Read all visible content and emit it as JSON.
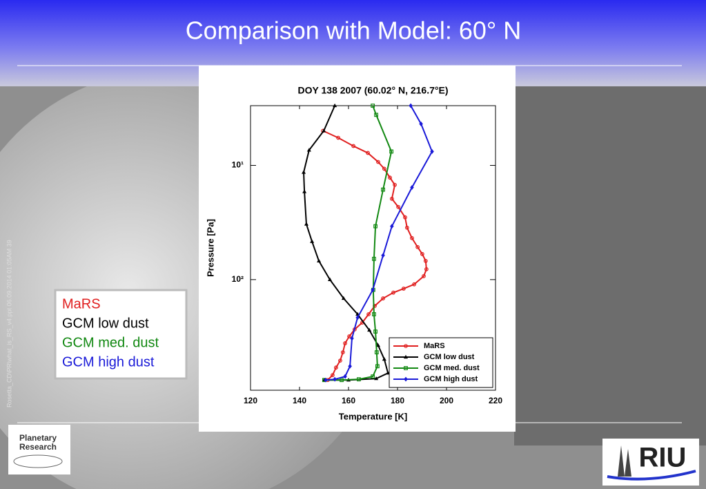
{
  "slide_title": "Comparison with Model: 60° N",
  "footer_note": "Rosetta_CD\\PR\\what_is_RS_v4.ppt 06.09.2014 01:05AM 39",
  "logo_left": [
    "Planetary",
    "Research"
  ],
  "logo_right": "RIU",
  "chart_data": {
    "type": "line",
    "title": "DOY 138 2007 (60.02° N, 216.7°E)",
    "xlabel": "Temperature [K]",
    "ylabel": "Pressure [Pa]",
    "xlim": [
      120,
      220
    ],
    "xticks": [
      120,
      140,
      160,
      180,
      200,
      220
    ],
    "ylim": [
      3,
      930
    ],
    "yticks": [
      {
        "value": 10,
        "label": "10¹"
      },
      {
        "value": 100,
        "label": "10²"
      }
    ],
    "ylog": true,
    "yinvert": true,
    "legend": "lower right",
    "series": [
      {
        "name": "MaRS",
        "color": "#e01e1e",
        "marker": "circle",
        "x": [
          149.6,
          155.8,
          162.0,
          167.9,
          172.1,
          174.6,
          176.9,
          178.9,
          177.7,
          180.3,
          183.1,
          183.9,
          185.9,
          188.2,
          190.1,
          191.5,
          191.8,
          190.7,
          186.8,
          182.5,
          178.3,
          174.1,
          170.7,
          168.2,
          165.6,
          162.5,
          160.3,
          158.6,
          157.7,
          156.6,
          154.9,
          153.5,
          151.5
        ],
        "values": [
          4.98,
          5.73,
          6.77,
          7.78,
          9.33,
          10.7,
          12.8,
          14.8,
          19.6,
          23.1,
          28.5,
          35.1,
          43.3,
          51.9,
          59.7,
          68.6,
          81.1,
          93.3,
          110,
          120,
          130,
          146,
          170,
          201,
          238,
          273,
          314,
          361,
          433,
          512,
          589,
          686,
          757
        ]
      },
      {
        "name": "GCM low dust",
        "color": "#000000",
        "marker": "triangle",
        "x": [
          154.4,
          149.9,
          143.9,
          141.7,
          142.0,
          142.8,
          145.1,
          147.9,
          152.4,
          158.0,
          163.7,
          168.5,
          172.1,
          174.6,
          176.1,
          171.3,
          160.0,
          150.1
        ],
        "values": [
          3,
          4.98,
          7.36,
          11.5,
          17.0,
          32.7,
          46.4,
          68.6,
          100,
          146,
          201,
          277,
          377,
          498,
          658,
          736,
          757,
          757
        ]
      },
      {
        "name": "GCM med. dust",
        "color": "#118811",
        "marker": "square",
        "x": [
          169.9,
          171.3,
          177.5,
          174.1,
          171.0,
          170.4,
          170.1,
          170.4,
          171.0,
          171.5,
          171.8,
          169.9,
          164.2,
          157.2,
          150.1
        ],
        "values": [
          3,
          3.61,
          7.56,
          16.3,
          34.1,
          65.8,
          123,
          201,
          285,
          433,
          573,
          705,
          746,
          757,
          757
        ]
      },
      {
        "name": "GCM high dust",
        "color": "#1a1ad8",
        "marker": "diamond",
        "x": [
          185.4,
          189.6,
          194.1,
          185.9,
          177.7,
          174.1,
          169.9,
          163.7,
          161.4,
          160.6,
          158.6,
          154.4,
          150.7
        ],
        "values": [
          3,
          4.33,
          7.56,
          15.6,
          34.1,
          61.4,
          123,
          215,
          327,
          573,
          705,
          746,
          757
        ]
      }
    ]
  }
}
